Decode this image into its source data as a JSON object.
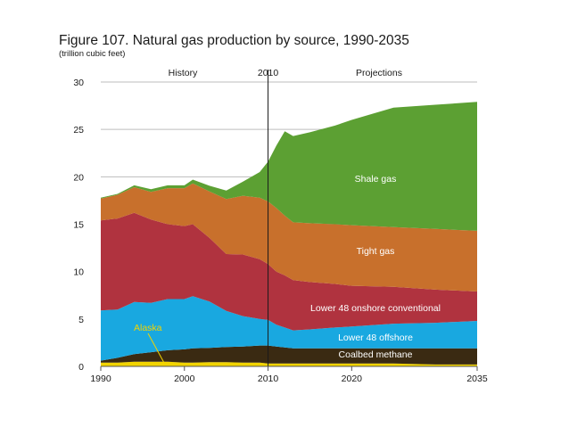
{
  "chart_data": {
    "type": "area",
    "stacked": true,
    "title": "Figure 107. Natural gas production by source, 1990-2035",
    "subtitle": "(trillion cubic feet)",
    "xlim": [
      1990,
      2035
    ],
    "ylim": [
      0,
      30
    ],
    "x_ticks": [
      1990,
      2000,
      2010,
      2020,
      2035
    ],
    "y_ticks": [
      0,
      5,
      10,
      15,
      20,
      25,
      30
    ],
    "grid": "horizontal",
    "divider": {
      "x": 2010,
      "label": "2010"
    },
    "period_labels": {
      "history": "History",
      "projections": "Projections"
    },
    "years": [
      1990,
      1992,
      1994,
      1996,
      1998,
      2000,
      2001,
      2003,
      2005,
      2007,
      2009,
      2010,
      2011,
      2012,
      2013,
      2015,
      2018,
      2020,
      2025,
      2030,
      2035
    ],
    "series": [
      {
        "name": "Alaska",
        "color": "#f2d400",
        "label": "Alaska",
        "values": [
          0.4,
          0.4,
          0.5,
          0.5,
          0.5,
          0.4,
          0.4,
          0.45,
          0.45,
          0.4,
          0.4,
          0.3,
          0.3,
          0.3,
          0.3,
          0.3,
          0.3,
          0.3,
          0.3,
          0.2,
          0.2
        ]
      },
      {
        "name": "Coalbed methane",
        "color": "#3a2a12",
        "label": "Coalbed methane",
        "values": [
          0.2,
          0.5,
          0.8,
          1.0,
          1.2,
          1.4,
          1.5,
          1.5,
          1.6,
          1.7,
          1.8,
          1.9,
          1.8,
          1.7,
          1.6,
          1.6,
          1.6,
          1.6,
          1.6,
          1.7,
          1.7
        ]
      },
      {
        "name": "Lower 48 offshore",
        "color": "#19a8e0",
        "label": "Lower 48 offshore",
        "values": [
          5.3,
          5.1,
          5.5,
          5.2,
          5.4,
          5.3,
          5.5,
          4.9,
          3.8,
          3.2,
          2.8,
          2.7,
          2.3,
          2.1,
          1.9,
          2.0,
          2.2,
          2.3,
          2.6,
          2.7,
          2.9
        ]
      },
      {
        "name": "Lower 48 onshore conventional",
        "color": "#b0333f",
        "label": "Lower 48 onshore conventional",
        "values": [
          9.5,
          9.6,
          9.4,
          8.8,
          7.9,
          7.7,
          7.6,
          6.7,
          6.0,
          6.5,
          6.3,
          5.9,
          5.6,
          5.5,
          5.3,
          5.0,
          4.6,
          4.3,
          3.9,
          3.5,
          3.1
        ]
      },
      {
        "name": "Tight gas",
        "color": "#c8702c",
        "label": "Tight gas",
        "values": [
          2.3,
          2.5,
          2.7,
          2.9,
          3.8,
          4.0,
          4.3,
          4.9,
          5.8,
          6.2,
          6.5,
          6.6,
          6.7,
          6.3,
          6.1,
          6.2,
          6.3,
          6.4,
          6.3,
          6.4,
          6.4
        ]
      },
      {
        "name": "Shale gas",
        "color": "#5ca033",
        "label": "Shale gas",
        "values": [
          0.1,
          0.1,
          0.2,
          0.3,
          0.3,
          0.3,
          0.4,
          0.6,
          0.9,
          1.5,
          2.7,
          4.2,
          6.6,
          8.9,
          9.1,
          9.6,
          10.4,
          11.1,
          12.6,
          13.1,
          13.6
        ]
      }
    ]
  }
}
